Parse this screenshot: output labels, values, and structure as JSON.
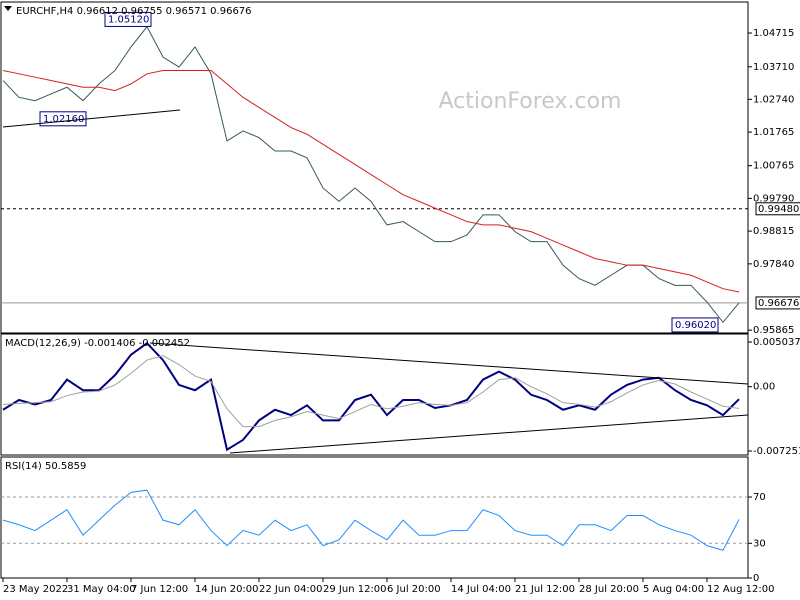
{
  "chart_data": [
    {
      "type": "line",
      "title": "EURCHF,H4  0.96612 0.96755 0.96571 0.96676",
      "watermark": "ActionForex.com",
      "ylim": [
        0.9578,
        1.0555
      ],
      "yticks": [
        {
          "value": 1.04715,
          "label": "1.04715"
        },
        {
          "value": 1.0371,
          "label": "1.03710"
        },
        {
          "value": 1.0274,
          "label": "1.02740"
        },
        {
          "value": 1.01765,
          "label": "1.01765"
        },
        {
          "value": 1.00765,
          "label": "1.00765"
        },
        {
          "value": 0.9979,
          "label": "0.99790"
        },
        {
          "value": 0.98815,
          "label": "0.98815"
        },
        {
          "value": 0.9784,
          "label": "0.97840"
        },
        {
          "value": 0.95865,
          "label": "0.95865"
        }
      ],
      "series": [
        {
          "color": "#36595a",
          "width": 1,
          "values": [
            1.033,
            1.028,
            1.027,
            1.029,
            1.031,
            1.027,
            1.032,
            1.036,
            1.043,
            1.049,
            1.04,
            1.037,
            1.043,
            1.035,
            1.015,
            1.018,
            1.016,
            1.012,
            1.012,
            1.01,
            1.001,
            0.997,
            1.001,
            0.997,
            0.99,
            0.991,
            0.988,
            0.985,
            0.985,
            0.987,
            0.993,
            0.993,
            0.988,
            0.985,
            0.985,
            0.978,
            0.974,
            0.972,
            0.975,
            0.978,
            0.978,
            0.974,
            0.972,
            0.972,
            0.967,
            0.961,
            0.96676
          ]
        },
        {
          "color": "#d42020",
          "width": 1,
          "values": [
            1.036,
            1.035,
            1.034,
            1.033,
            1.032,
            1.031,
            1.031,
            1.03,
            1.032,
            1.035,
            1.036,
            1.036,
            1.036,
            1.036,
            1.032,
            1.028,
            1.025,
            1.022,
            1.019,
            1.017,
            1.014,
            1.011,
            1.008,
            1.005,
            1.002,
            0.999,
            0.997,
            0.995,
            0.993,
            0.991,
            0.99,
            0.99,
            0.989,
            0.988,
            0.986,
            0.984,
            0.982,
            0.98,
            0.979,
            0.978,
            0.978,
            0.977,
            0.976,
            0.975,
            0.973,
            0.971,
            0.97
          ]
        }
      ],
      "levels": [
        {
          "value": 0.9948,
          "label": "0.99480",
          "style": "dashed"
        },
        {
          "value": 0.96676,
          "label": "0.96676",
          "style": "solid"
        }
      ],
      "annotations": [
        {
          "text": "1.05120",
          "value": 1.0512
        },
        {
          "text": "1.02160",
          "value": 1.0216
        },
        {
          "text": "0.96020",
          "value": 0.9602
        }
      ]
    },
    {
      "type": "line",
      "title": "MACD(12,26,9) -0.001406 -0.002452",
      "ylim": [
        -0.0077,
        0.0056
      ],
      "yticks": [
        0.005037,
        {
          "value": 0,
          "label": "0.00"
        },
        -0.007251
      ],
      "series": [
        {
          "color": "#000080",
          "width": 2,
          "values": [
            -0.0026,
            -0.0015,
            -0.002,
            -0.0015,
            0.0008,
            -0.0004,
            -0.0004,
            0.0013,
            0.0036,
            0.0049,
            0.003,
            0.0002,
            -0.0004,
            0.0008,
            -0.0071,
            -0.006,
            -0.0038,
            -0.0026,
            -0.0032,
            -0.0021,
            -0.0038,
            -0.0038,
            -0.0015,
            -0.0009,
            -0.0032,
            -0.0015,
            -0.0015,
            -0.0024,
            -0.0021,
            -0.0015,
            0.0008,
            0.0017,
            0.0008,
            -0.0009,
            -0.0015,
            -0.0026,
            -0.0021,
            -0.0026,
            -0.0009,
            0.0002,
            0.0008,
            0.001,
            -0.0004,
            -0.0015,
            -0.0021,
            -0.0032,
            -0.001406
          ]
        },
        {
          "color": "#a0a0a0",
          "width": 1,
          "values": [
            -0.002,
            -0.0019,
            -0.0018,
            -0.0017,
            -0.001,
            -0.0006,
            -0.0005,
            0.0002,
            0.0015,
            0.003,
            0.0035,
            0.0025,
            0.0012,
            0.0006,
            -0.0025,
            -0.0045,
            -0.0045,
            -0.0038,
            -0.0034,
            -0.0028,
            -0.0032,
            -0.0036,
            -0.0028,
            -0.002,
            -0.0025,
            -0.0022,
            -0.0018,
            -0.002,
            -0.0021,
            -0.0018,
            -0.0006,
            0.0008,
            0.001,
            0.0,
            -0.0008,
            -0.0018,
            -0.002,
            -0.0023,
            -0.0017,
            -0.0007,
            0.0002,
            0.0007,
            0.0003,
            -0.0006,
            -0.0014,
            -0.0022,
            -0.002452
          ]
        }
      ]
    },
    {
      "type": "line",
      "title": "RSI(14) 50.5859",
      "ylim": [
        0,
        102
      ],
      "yticks": [
        70,
        30,
        0
      ],
      "level_lines": "dashed",
      "series": [
        {
          "color": "#1e90ff",
          "width": 1,
          "values": [
            50,
            46,
            41,
            50,
            59,
            37,
            50,
            63,
            74,
            76,
            50,
            46,
            59,
            41,
            28,
            41,
            37,
            50,
            41,
            46,
            28,
            33,
            50,
            41,
            33,
            50,
            37,
            37,
            41,
            41,
            59,
            54,
            41,
            37,
            37,
            28,
            46,
            46,
            41,
            54,
            54,
            46,
            41,
            37,
            28,
            24,
            50.5859
          ]
        }
      ],
      "categories": [
        "23 May 2022",
        null,
        null,
        null,
        "31 May 04:00",
        null,
        null,
        null,
        "7 Jun 12:00",
        null,
        null,
        null,
        "14 Jun 20:00",
        null,
        null,
        null,
        "22 Jun 04:00",
        null,
        null,
        null,
        "29 Jun 12:00",
        null,
        null,
        null,
        "6 Jul 20:00",
        null,
        null,
        null,
        "14 Jul 04:00",
        null,
        null,
        null,
        "21 Jul 12:00",
        null,
        null,
        null,
        "28 Jul 20:00",
        null,
        null,
        null,
        "5 Aug 04:00",
        null,
        null,
        null,
        "12 Aug 12:00",
        null,
        null
      ]
    }
  ]
}
